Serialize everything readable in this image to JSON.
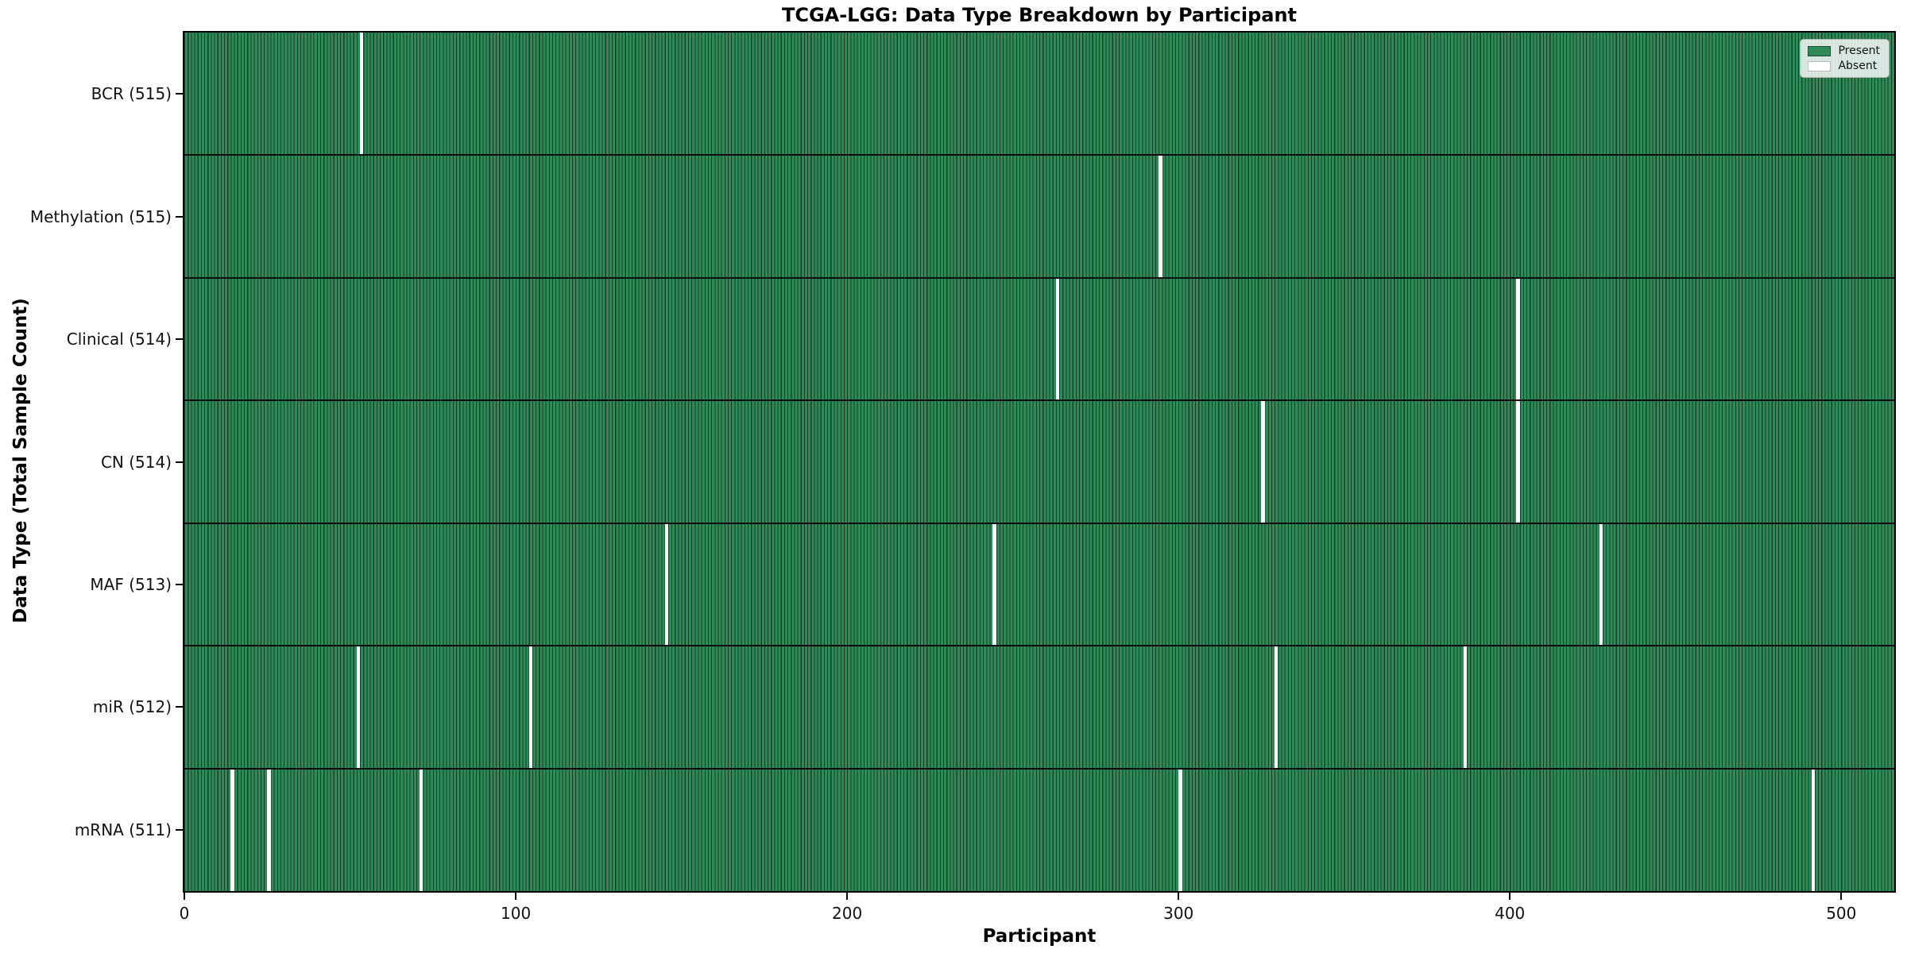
{
  "title": "TCGA-LGG: Data Type Breakdown by Participant",
  "colors": {
    "present": "#2e8b57",
    "bar_edge": "#16402a",
    "absent": "#ffffff",
    "axis": "#000000",
    "legend_border": "#b4b4b4"
  },
  "legend": {
    "items": [
      {
        "label": "Present",
        "color": "#2e8b57",
        "edge": "#1b5236"
      },
      {
        "label": "Absent",
        "color": "#ffffff",
        "edge": "#bbbbbb"
      }
    ]
  },
  "chart_data": {
    "type": "heatmap",
    "title": "TCGA-LGG: Data Type Breakdown by Participant",
    "xlabel": "Participant",
    "ylabel": "Data Type (Total Sample Count)",
    "x_ticks": [
      0,
      100,
      200,
      300,
      400,
      500
    ],
    "x_range": [
      0,
      516
    ],
    "total_participants": 516,
    "grid": false,
    "legend_position": "upper right",
    "legend_entries": [
      "Present",
      "Absent"
    ],
    "rows": [
      {
        "label": "BCR (515)",
        "data_type": "BCR",
        "present_count": 515,
        "absent_participants": [
          53
        ]
      },
      {
        "label": "Methylation (515)",
        "data_type": "Methylation",
        "present_count": 515,
        "absent_participants": [
          294
        ]
      },
      {
        "label": "Clinical (514)",
        "data_type": "Clinical",
        "present_count": 514,
        "absent_participants": [
          263,
          402
        ]
      },
      {
        "label": "CN (514)",
        "data_type": "CN",
        "present_count": 514,
        "absent_participants": [
          325,
          402
        ]
      },
      {
        "label": "MAF (513)",
        "data_type": "MAF",
        "present_count": 513,
        "absent_participants": [
          145,
          244,
          427
        ]
      },
      {
        "label": "miR (512)",
        "data_type": "miR",
        "present_count": 512,
        "absent_participants": [
          52,
          104,
          329,
          386
        ]
      },
      {
        "label": "mRNA (511)",
        "data_type": "mRNA",
        "present_count": 511,
        "absent_participants": [
          14,
          25,
          71,
          300,
          491
        ]
      }
    ]
  }
}
